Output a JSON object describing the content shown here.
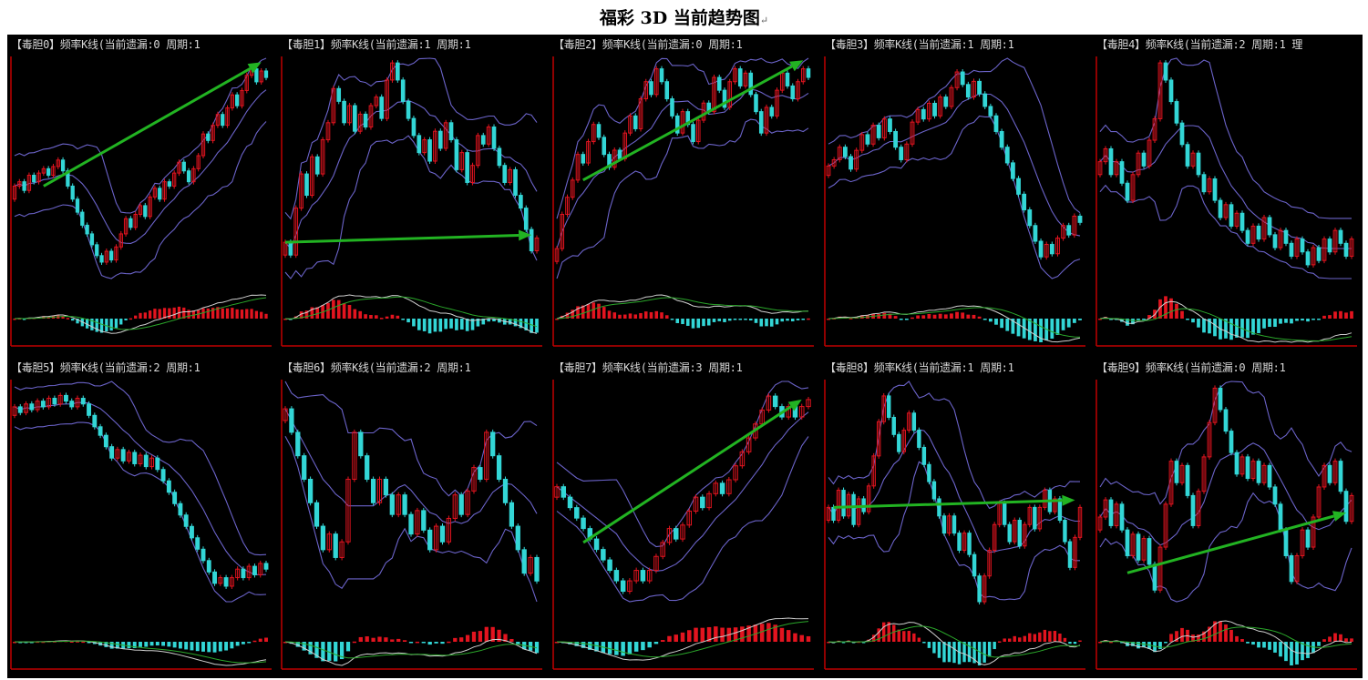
{
  "page": {
    "title": "福彩 3D 当前趋势图",
    "title_mark": "↵"
  },
  "colors": {
    "background": "#000000",
    "up": "#e3141f",
    "down": "#33d6d6",
    "band": "#6b63c9",
    "arrow": "#22b322",
    "axis": "#c00000",
    "dif": "#cfcfcf",
    "dea": "#2aa62a"
  },
  "chart_data": [
    {
      "type": "candlestick",
      "title": "【毒胆0】频率K线(当前遗漏:0 周期:1",
      "trend_arrow": "up",
      "close": [
        1.2,
        1.3,
        1.1,
        1.45,
        1.3,
        1.5,
        1.6,
        1.45,
        1.65,
        1.8,
        1.55,
        1.2,
        0.9,
        0.6,
        0.3,
        0.1,
        -0.15,
        -0.4,
        -0.55,
        -0.3,
        -0.5,
        -0.2,
        0.1,
        0.45,
        0.25,
        0.55,
        0.75,
        0.5,
        0.95,
        1.15,
        0.9,
        1.3,
        1.2,
        1.5,
        1.75,
        1.55,
        1.3,
        1.6,
        1.9,
        2.4,
        2.25,
        2.6,
        2.85,
        2.6,
        3.0,
        3.3,
        3.05,
        3.4,
        3.75,
        3.9,
        3.6,
        3.85,
        3.7
      ]
    },
    {
      "type": "candlestick",
      "title": "【毒胆1】频率K线(当前遗漏:1 周期:1",
      "trend_arrow": "flat",
      "close": [
        -0.2,
        -0.5,
        0.6,
        1.4,
        0.9,
        1.8,
        1.4,
        2.2,
        2.6,
        3.4,
        3.1,
        2.6,
        3.0,
        2.4,
        2.8,
        2.5,
        3.0,
        3.2,
        2.7,
        3.6,
        4.0,
        3.6,
        3.1,
        2.7,
        2.3,
        1.9,
        2.2,
        1.7,
        2.4,
        2.0,
        2.6,
        2.2,
        1.5,
        1.9,
        1.2,
        1.6,
        2.3,
        2.1,
        2.5,
        2.0,
        1.6,
        1.2,
        1.5,
        0.9,
        0.6,
        0.1,
        -0.4,
        -0.1
      ]
    },
    {
      "type": "candlestick",
      "title": "【毒胆2】频率K线(当前遗漏:0 周期:1",
      "trend_arrow": "up",
      "close": [
        -0.6,
        0.2,
        0.6,
        1.0,
        1.6,
        1.4,
        1.9,
        2.3,
        2.0,
        1.6,
        1.3,
        1.7,
        1.5,
        2.1,
        2.5,
        2.2,
        2.9,
        3.3,
        3.0,
        3.6,
        3.3,
        2.9,
        2.5,
        2.1,
        2.6,
        2.3,
        1.9,
        2.4,
        2.8,
        2.6,
        3.4,
        3.1,
        2.7,
        3.3,
        3.6,
        3.2,
        3.5,
        3.0,
        2.6,
        2.1,
        2.7,
        2.5,
        3.1,
        3.5,
        3.2,
        2.9,
        3.3,
        3.6,
        3.4
      ]
    },
    {
      "type": "candlestick",
      "title": "【毒胆3】频率K线(当前遗漏:1 周期:1",
      "trend_arrow": "none",
      "close": [
        0.9,
        1.1,
        1.5,
        1.2,
        0.8,
        1.4,
        1.9,
        1.6,
        2.2,
        1.8,
        2.4,
        2.0,
        1.5,
        1.1,
        1.6,
        2.3,
        2.7,
        2.4,
        2.9,
        2.5,
        3.1,
        2.8,
        3.4,
        3.9,
        3.5,
        3.1,
        3.6,
        3.2,
        2.8,
        2.5,
        2.0,
        1.5,
        1.0,
        0.5,
        0.0,
        -0.5,
        -1.0,
        -1.5,
        -2.0,
        -1.6,
        -1.9,
        -1.4,
        -1.0,
        -1.3,
        -0.7,
        -0.9
      ]
    },
    {
      "type": "candlestick",
      "title": "【毒胆4】频率K线(当前遗漏:2 周期:1 理",
      "trend_arrow": "none",
      "close": [
        0.9,
        1.2,
        0.6,
        0.9,
        0.4,
        0.0,
        0.6,
        1.1,
        0.8,
        1.4,
        1.9,
        3.2,
        2.8,
        2.3,
        1.8,
        1.3,
        0.8,
        1.1,
        0.6,
        0.2,
        0.5,
        0.0,
        -0.4,
        -0.1,
        -0.6,
        -0.3,
        -0.7,
        -1.0,
        -0.6,
        -0.9,
        -0.4,
        -0.8,
        -1.1,
        -0.7,
        -1.0,
        -1.3,
        -0.9,
        -1.2,
        -1.5,
        -1.1,
        -1.4,
        -0.9,
        -1.2,
        -0.7,
        -1.0,
        -1.3,
        -0.9
      ]
    },
    {
      "type": "candlestick",
      "title": "【毒胆5】频率K线(当前遗漏:2 周期:1",
      "trend_arrow": "none",
      "close": [
        3.0,
        2.8,
        3.1,
        2.9,
        3.2,
        3.0,
        3.3,
        3.1,
        3.4,
        3.2,
        3.0,
        3.3,
        3.1,
        2.7,
        2.3,
        2.0,
        1.6,
        1.2,
        1.5,
        1.1,
        1.4,
        1.0,
        1.3,
        0.9,
        1.2,
        0.8,
        0.4,
        0.0,
        -0.4,
        -0.8,
        -1.2,
        -1.6,
        -2.0,
        -2.4,
        -2.8,
        -3.2,
        -3.0,
        -3.3,
        -3.0,
        -2.7,
        -3.0,
        -2.6,
        -2.9,
        -2.5,
        -2.7
      ]
    },
    {
      "type": "candlestick",
      "title": "【毒胆6】频率K线(当前遗漏:2 周期:1",
      "trend_arrow": "none",
      "close": [
        1.8,
        1.2,
        0.6,
        0.0,
        -0.6,
        -1.2,
        -1.8,
        -1.4,
        -2.0,
        -1.6,
        0.0,
        1.2,
        0.6,
        0.0,
        -0.6,
        0.0,
        -0.4,
        -0.9,
        -0.4,
        -0.9,
        -1.4,
        -0.8,
        -1.3,
        -1.8,
        -1.2,
        -1.6,
        -1.0,
        -0.4,
        -0.9,
        -0.3,
        0.3,
        0.0,
        1.2,
        0.6,
        0.0,
        -0.6,
        -1.2,
        -1.8,
        -2.4,
        -2.0,
        -2.6
      ]
    },
    {
      "type": "candlestick",
      "title": "【毒胆7】频率K线(当前遗漏:3 周期:1",
      "trend_arrow": "up",
      "close": [
        0.4,
        0.1,
        -0.2,
        -0.5,
        -0.8,
        -1.1,
        -1.4,
        -1.7,
        -2.0,
        -2.3,
        -2.6,
        -2.3,
        -2.0,
        -2.3,
        -2.0,
        -1.6,
        -1.2,
        -0.8,
        -1.1,
        -0.7,
        -0.3,
        0.1,
        -0.2,
        0.2,
        0.5,
        0.2,
        0.6,
        1.0,
        1.4,
        1.8,
        2.2,
        2.6,
        3.0,
        2.7,
        2.4,
        2.7,
        2.4,
        2.7,
        2.9
      ]
    },
    {
      "type": "candlestick",
      "title": "【毒胆8】频率K线(当前遗漏:1 周期:1",
      "trend_arrow": "flat",
      "close": [
        -0.2,
        -0.5,
        0.2,
        -0.4,
        0.1,
        -0.6,
        0.0,
        -0.3,
        0.3,
        1.0,
        1.8,
        2.4,
        1.9,
        1.5,
        1.1,
        1.6,
        2.0,
        1.6,
        1.2,
        0.8,
        0.4,
        0.0,
        -0.4,
        -0.8,
        -0.4,
        -0.8,
        -1.2,
        -0.8,
        -1.3,
        -1.8,
        -2.4,
        -1.8,
        -1.2,
        -0.6,
        -0.1,
        -0.6,
        -1.0,
        -0.5,
        -1.1,
        -0.6,
        -0.2,
        -0.7,
        -0.2,
        0.2,
        -0.3,
        0.0,
        -0.5,
        -1.0,
        -1.6,
        -0.9,
        -0.2
      ]
    },
    {
      "type": "candlestick",
      "title": "【毒胆9】频率K线(当前遗漏:0 周期:1",
      "trend_arrow": "up",
      "close": [
        -0.3,
        0.1,
        -0.5,
        0.0,
        -0.6,
        -1.2,
        -0.7,
        -1.3,
        -0.8,
        -1.4,
        -2.0,
        -1.0,
        0.0,
        1.0,
        0.5,
        0.9,
        0.2,
        -0.5,
        0.3,
        1.1,
        1.9,
        2.7,
        2.2,
        1.7,
        1.2,
        0.7,
        1.1,
        0.6,
        1.0,
        0.5,
        0.9,
        0.4,
        0.0,
        -0.6,
        -1.2,
        -1.8,
        -1.2,
        -0.6,
        -1.0,
        -0.3,
        0.4,
        0.9,
        0.5,
        1.0,
        0.3,
        -0.4,
        0.2
      ]
    }
  ]
}
